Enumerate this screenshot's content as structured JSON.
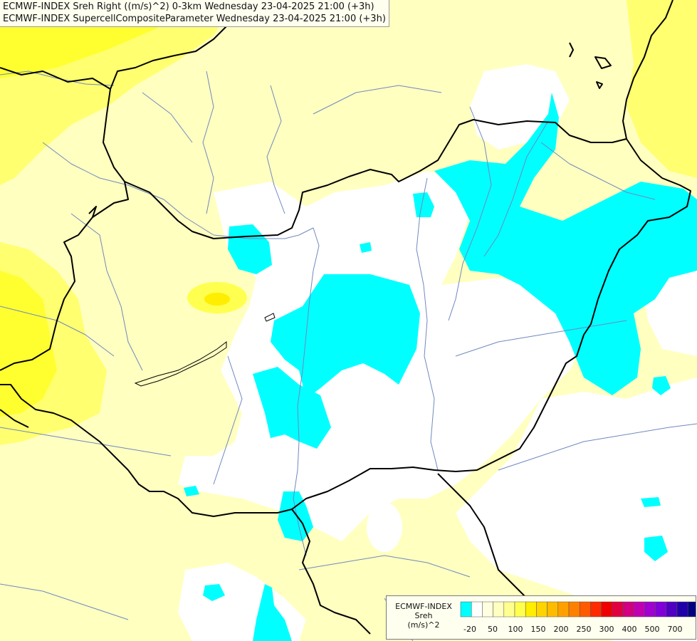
{
  "header": {
    "line1": "ECMWF-INDEX Sreh Right ((m/s)^2) 0-3km Wednesday 23-04-2025 21:00 (+3h)",
    "line2": "ECMWF-INDEX SupercellCompositeParameter Wednesday 23-04-2025 21:00 (+3h)"
  },
  "legend": {
    "title1": "ECMWF-INDEX",
    "title2": "Sreh",
    "title3": "(m/s)^2",
    "colors": [
      "#00ffff",
      "#ffffff",
      "#ffffe0",
      "#ffffc0",
      "#ffff90",
      "#ffff50",
      "#ffee00",
      "#ffd400",
      "#ffbb00",
      "#ffa000",
      "#ff8000",
      "#ff5a00",
      "#ff2a00",
      "#ee0000",
      "#e00040",
      "#d00080",
      "#c000b0",
      "#a000d0",
      "#8000d8",
      "#5000c0",
      "#2000a8",
      "#000080"
    ],
    "labels": [
      "-20",
      "50",
      "100",
      "150",
      "200",
      "250",
      "300",
      "400",
      "500",
      "700"
    ]
  }
}
